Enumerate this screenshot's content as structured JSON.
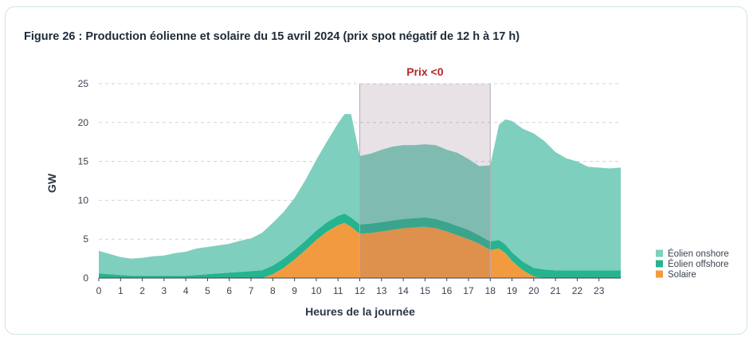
{
  "title": "Figure 26 : Production éolienne et solaire du 15 avril 2024 (prix spot négatif de 12 h à 17 h)",
  "chart_data": {
    "type": "area",
    "stacked": true,
    "title": "Figure 26 : Production éolienne et solaire du 15 avril 2024 (prix spot négatif de 12 h à 17 h)",
    "xlabel": "Heures de la journée",
    "ylabel": "GW",
    "xlim": [
      0,
      24
    ],
    "ylim": [
      0,
      25
    ],
    "x_ticks": [
      0,
      1,
      2,
      3,
      4,
      5,
      6,
      7,
      8,
      9,
      10,
      11,
      12,
      13,
      14,
      15,
      16,
      17,
      18,
      19,
      20,
      21,
      22,
      23
    ],
    "y_ticks": [
      0,
      5,
      10,
      15,
      20,
      25
    ],
    "grid": "horizontal dashed",
    "legend_position": "right",
    "highlight": {
      "label": "Prix <0",
      "x_start": 12,
      "x_end": 18,
      "color": "#e8dfe4"
    },
    "x": [
      0,
      0.5,
      1,
      1.5,
      2,
      2.5,
      3,
      3.5,
      4,
      4.5,
      5,
      5.5,
      6,
      6.5,
      7,
      7.5,
      8,
      8.5,
      9,
      9.5,
      10,
      10.5,
      11,
      11.3,
      11.6,
      12,
      12.5,
      13,
      13.5,
      14,
      14.5,
      15,
      15.5,
      16,
      16.5,
      17,
      17.5,
      18,
      18.4,
      18.7,
      19,
      19.5,
      20,
      20.5,
      21,
      21.5,
      22,
      22.5,
      23,
      23.5,
      24
    ],
    "series": [
      {
        "name": "Solaire",
        "color": "#f29a3f",
        "values": [
          0,
          0,
          0,
          0,
          0,
          0,
          0,
          0,
          0,
          0,
          0,
          0,
          0,
          0,
          0,
          0,
          0.5,
          1.3,
          2.4,
          3.6,
          4.9,
          6,
          6.8,
          7.1,
          6.6,
          5.7,
          5.8,
          6,
          6.2,
          6.4,
          6.5,
          6.6,
          6.4,
          6,
          5.5,
          5,
          4.4,
          3.6,
          3.8,
          3.2,
          2.2,
          1,
          0.2,
          0,
          0,
          0,
          0,
          0,
          0,
          0,
          0
        ]
      },
      {
        "name": "Éolien offshore",
        "color": "#26b38f",
        "values": [
          0.6,
          0.5,
          0.4,
          0.3,
          0.3,
          0.3,
          0.3,
          0.3,
          0.3,
          0.4,
          0.5,
          0.6,
          0.7,
          0.8,
          0.9,
          1,
          1.1,
          1.2,
          1.2,
          1.2,
          1.2,
          1.2,
          1.2,
          1.2,
          1.2,
          1.2,
          1.2,
          1.2,
          1.2,
          1.2,
          1.2,
          1.2,
          1.2,
          1.2,
          1.2,
          1.2,
          1.1,
          1.1,
          1.1,
          1.1,
          1.1,
          1.1,
          1.1,
          1.1,
          1,
          1,
          1,
          1,
          1,
          1,
          1
        ]
      },
      {
        "name": "Éolien onshore",
        "color": "#7ecfbe",
        "values": [
          2.9,
          2.6,
          2.3,
          2.2,
          2.3,
          2.5,
          2.6,
          2.9,
          3.1,
          3.4,
          3.5,
          3.6,
          3.7,
          4,
          4.2,
          4.8,
          5.5,
          6,
          6.7,
          7.8,
          9.1,
          10.4,
          11.9,
          12.8,
          13.3,
          8.8,
          9,
          9.3,
          9.5,
          9.5,
          9.4,
          9.4,
          9.5,
          9.3,
          9.4,
          9.1,
          8.9,
          9.8,
          14.8,
          16.1,
          16.9,
          17.1,
          17.3,
          16.5,
          15.2,
          14.4,
          14,
          13.3,
          13.2,
          13.1,
          13.2
        ]
      }
    ]
  }
}
